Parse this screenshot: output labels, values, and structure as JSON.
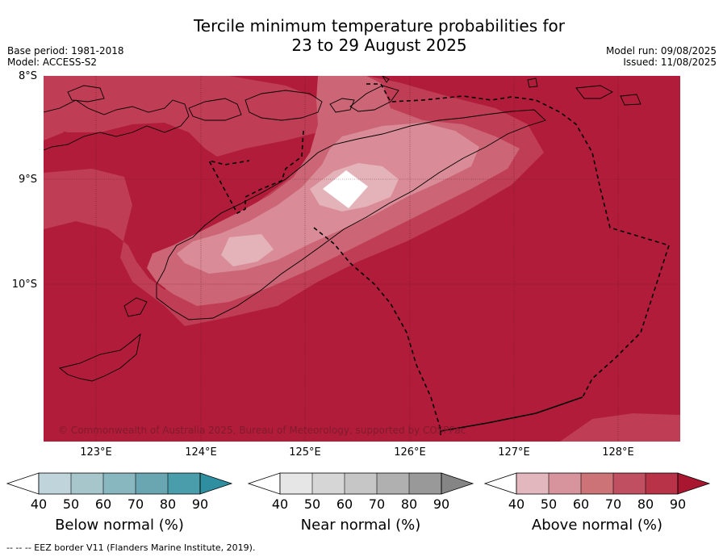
{
  "title": {
    "line1": "Tercile minimum temperature probabilities for",
    "line2": "23 to 29 August 2025"
  },
  "meta_left": {
    "base_period": "Base period: 1981-2018",
    "model": "Model: ACCESS-S2"
  },
  "meta_right": {
    "model_run": "Model run: 09/08/2025",
    "issued": "Issued: 11/08/2025"
  },
  "map": {
    "lat_labels": [
      "8°S",
      "9°S",
      "10°S"
    ],
    "lon_labels": [
      "123°E",
      "124°E",
      "125°E",
      "126°E",
      "127°E",
      "128°E"
    ],
    "copyright": "© Commonwealth of Australia 2025, Bureau of Meteorology, supported by COSPPac",
    "colors": {
      "above_90": "#b01c3a",
      "above_80": "#bf3d55",
      "above_70": "#cc6676",
      "above_60": "#d98c97",
      "above_50": "#e4b3ba",
      "white": "#ffffff"
    }
  },
  "colorbars": [
    {
      "label": "Below normal (%)",
      "ticks": [
        "40",
        "50",
        "60",
        "70",
        "80",
        "90"
      ],
      "colors": [
        "#ffffff",
        "#c0d5db",
        "#a6c6cc",
        "#89b7c0",
        "#6aa6b2",
        "#4a9dab",
        "#2f8fa0"
      ]
    },
    {
      "label": "Near normal (%)",
      "ticks": [
        "40",
        "50",
        "60",
        "70",
        "80",
        "90"
      ],
      "colors": [
        "#ffffff",
        "#e6e6e6",
        "#d6d6d6",
        "#c6c6c6",
        "#b0b0b0",
        "#999999",
        "#858585"
      ]
    },
    {
      "label": "Above normal (%)",
      "ticks": [
        "40",
        "50",
        "60",
        "70",
        "80",
        "90"
      ],
      "colors": [
        "#ffffff",
        "#e2b8be",
        "#d8949c",
        "#cc7378",
        "#c05061",
        "#b83348",
        "#a8172f"
      ]
    }
  ],
  "footer": "--  --  -- EEZ border V11 (Flanders Marine Institute, 2019)."
}
